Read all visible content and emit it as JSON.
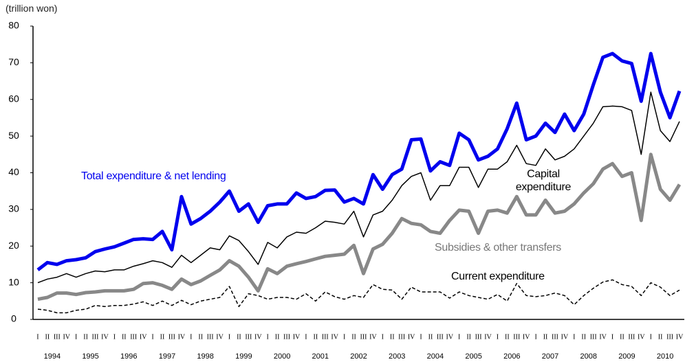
{
  "chart_data": {
    "type": "line",
    "unit_label": "(trillion won)",
    "categories": [
      "I",
      "II",
      "III",
      "IV",
      "I",
      "II",
      "III",
      "IV",
      "I",
      "II",
      "III",
      "IV",
      "I",
      "II",
      "III",
      "IV",
      "I",
      "II",
      "III",
      "IV",
      "I",
      "II",
      "III",
      "IV",
      "I",
      "II",
      "III",
      "IV",
      "I",
      "II",
      "III",
      "IV",
      "I",
      "II",
      "III",
      "IV",
      "I",
      "II",
      "III",
      "IV",
      "I",
      "II",
      "III",
      "IV",
      "I",
      "II",
      "III",
      "IV",
      "I",
      "II",
      "III",
      "IV",
      "I",
      "II",
      "III",
      "IV",
      "I",
      "II",
      "III",
      "IV",
      "I",
      "II",
      "III",
      "IV",
      "I",
      "II",
      "III",
      "IV"
    ],
    "years": [
      "1994",
      "1995",
      "1996",
      "1997",
      "1998",
      "1999",
      "2000",
      "2001",
      "2002",
      "2003",
      "2004",
      "2005",
      "2006",
      "2007",
      "2008",
      "2009",
      "2010"
    ],
    "ylim": [
      0,
      80
    ],
    "yticks": [
      0,
      10,
      20,
      30,
      40,
      50,
      60,
      70,
      80
    ],
    "grid": false,
    "series": [
      {
        "name": "Total expenditure & net lending",
        "color": "#0000ee",
        "line_width": 5,
        "style": "solid",
        "values": [
          13.5,
          15.5,
          15,
          16,
          16.3,
          16.8,
          18.5,
          19.2,
          19.8,
          20.8,
          21.8,
          22,
          21.8,
          24,
          19,
          33.5,
          26,
          27.5,
          29.5,
          32,
          35,
          29.5,
          31.5,
          26.5,
          31,
          31.5,
          31.5,
          34.5,
          33,
          33.5,
          35.2,
          35.3,
          32,
          33,
          31.5,
          39.5,
          35.5,
          39.5,
          41,
          49,
          49.2,
          40.5,
          43,
          42,
          50.8,
          49,
          43.5,
          44.5,
          46.5,
          52,
          59,
          49,
          50,
          53.5,
          51,
          56,
          51.5,
          56,
          64,
          71.5,
          72.5,
          70.5,
          69.8,
          59.5,
          72.5,
          62,
          55,
          62.3
        ]
      },
      {
        "name": "Capital expenditure",
        "color": "#000000",
        "line_width": 1.5,
        "style": "solid",
        "values": [
          10,
          11,
          11.5,
          12.5,
          11.5,
          12.5,
          13.2,
          13,
          13.5,
          13.5,
          14.5,
          15.2,
          16,
          15.5,
          14.2,
          17.5,
          15.5,
          17.5,
          19.5,
          19,
          22.8,
          21.5,
          18.5,
          15,
          21,
          19.5,
          22.5,
          23.8,
          23.5,
          25,
          26.8,
          26.5,
          26,
          29.5,
          22.5,
          28.5,
          29.5,
          32.5,
          36.5,
          39,
          40,
          32.5,
          36.5,
          36.5,
          41.5,
          41.5,
          36,
          41,
          41,
          43,
          47.5,
          42.5,
          42,
          46.5,
          43.5,
          44.5,
          46.5,
          50,
          53.5,
          58,
          58.2,
          58,
          57,
          45,
          62,
          51.5,
          48.5,
          54
        ]
      },
      {
        "name": "Subsidies & other transfers",
        "color": "#888888",
        "line_width": 5,
        "style": "solid",
        "values": [
          5.5,
          6,
          7.2,
          7.2,
          6.8,
          7.3,
          7.5,
          7.8,
          7.8,
          7.8,
          8.2,
          9.8,
          10,
          9.3,
          8.2,
          11,
          9.5,
          10.5,
          12,
          13.5,
          16,
          14.5,
          11.5,
          7.8,
          13.8,
          12.5,
          14.5,
          15.2,
          15.8,
          16.5,
          17.2,
          17.5,
          17.8,
          20.2,
          12.5,
          19.2,
          20.5,
          23.5,
          27.5,
          26.2,
          25.8,
          24,
          23.5,
          27,
          29.8,
          29.5,
          23.5,
          29.5,
          29.8,
          29,
          33.5,
          28.5,
          28.5,
          32.5,
          29,
          29.5,
          31.5,
          34.5,
          37,
          41,
          42.5,
          39,
          40,
          27,
          45,
          35.5,
          32.5,
          36.8
        ]
      },
      {
        "name": "Current expenditure",
        "color": "#000000",
        "line_width": 1.5,
        "style": "dashed",
        "values": [
          2.8,
          2.5,
          1.8,
          1.8,
          2.5,
          2.8,
          3.8,
          3.5,
          3.8,
          3.8,
          4.2,
          4.8,
          3.8,
          5,
          3.8,
          5.2,
          4,
          5,
          5.5,
          6,
          9,
          3.5,
          7,
          6.5,
          5.5,
          6,
          6,
          5.5,
          7,
          5,
          7.5,
          6.2,
          5.5,
          6.5,
          6,
          9.5,
          8.2,
          8,
          5.5,
          8.8,
          7.5,
          7.5,
          7.5,
          5.8,
          7.5,
          6.5,
          6,
          5.5,
          6.8,
          5,
          9.8,
          6.5,
          6.2,
          6.5,
          7.2,
          6.5,
          4,
          6.5,
          8.5,
          10.2,
          10.8,
          9.5,
          9,
          6.5,
          10,
          8.8,
          6.5,
          8
        ]
      }
    ]
  }
}
